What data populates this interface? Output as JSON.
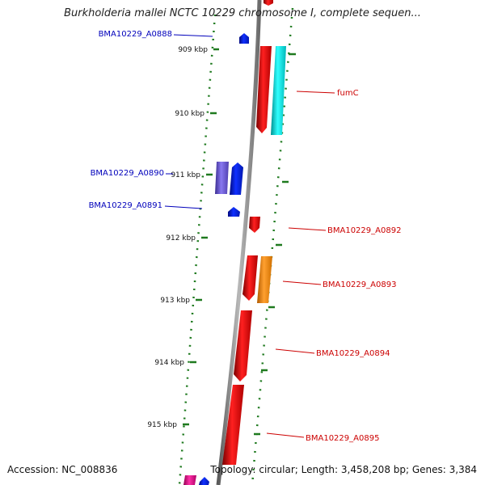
{
  "title": "Burkholderia mallei NCTC 10229 chromosome I, complete sequen...",
  "accession": "Accession: NC_008836",
  "summary": "Topology: circular; Length: 3,458,208 bp; Genes: 3,384",
  "colors": {
    "backbone": "#808080",
    "tick": "#1f7a1f",
    "label_forward": "#0000bb",
    "label_reverse": "#cc0000",
    "gene_red": "#ee0000",
    "gene_blue": "#0022ee",
    "gene_cyan": "#00dddd",
    "gene_purple": "#6655cc",
    "gene_orange": "#ff8800",
    "gene_magenta": "#dd0088"
  },
  "ticks": [
    "909 kbp",
    "910 kbp",
    "911 kbp",
    "912 kbp",
    "913 kbp",
    "914 kbp",
    "915 kbp"
  ],
  "gene_labels": [
    {
      "text": "BMA10229_A0888",
      "strand": "forward"
    },
    {
      "text": "fumC",
      "strand": "reverse"
    },
    {
      "text": "BMA10229_A0890",
      "strand": "forward"
    },
    {
      "text": "BMA10229_A0891",
      "strand": "forward"
    },
    {
      "text": "BMA10229_A0892",
      "strand": "reverse"
    },
    {
      "text": "BMA10229_A0893",
      "strand": "reverse"
    },
    {
      "text": "BMA10229_A0894",
      "strand": "reverse"
    },
    {
      "text": "BMA10229_A0895",
      "strand": "reverse"
    }
  ]
}
